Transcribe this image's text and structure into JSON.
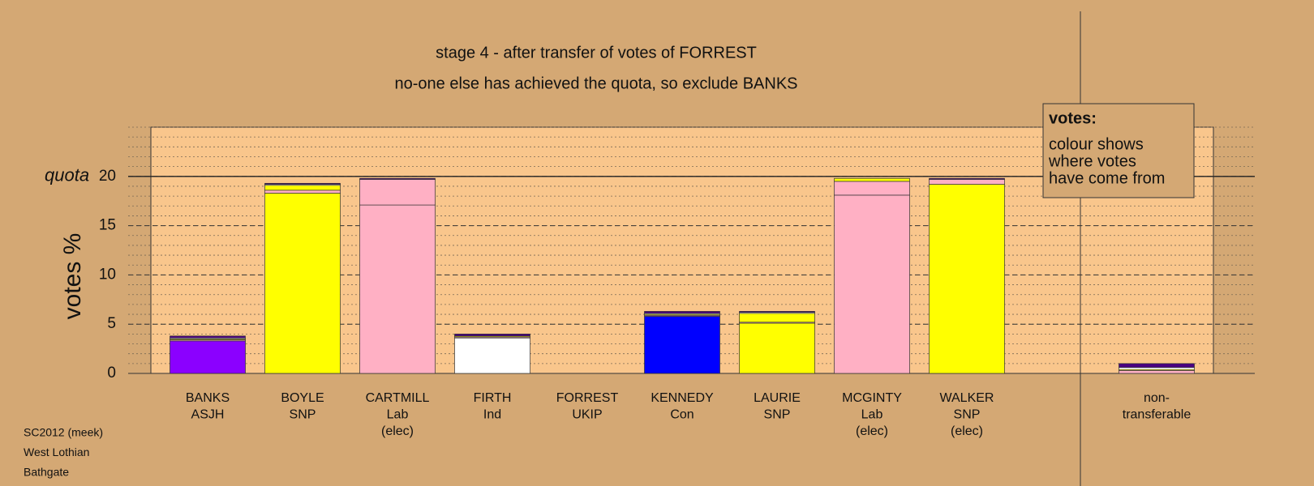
{
  "chart_data": {
    "type": "stacked_bar",
    "title": "stage 4 - after transfer of votes of FORREST",
    "subtitle": "no-one else has achieved the quota, so exclude BANKS",
    "y_label": "votes %",
    "quota": {
      "label": "quota",
      "value": 20
    },
    "categories": [
      [
        "BANKS",
        "ASJH"
      ],
      [
        "BOYLE",
        "SNP"
      ],
      [
        "CARTMILL",
        "Lab",
        "(elec)"
      ],
      [
        "FIRTH",
        "Ind"
      ],
      [
        "FORREST",
        "UKIP"
      ],
      [
        "KENNEDY",
        "Con"
      ],
      [
        "LAURIE",
        "SNP"
      ],
      [
        "MCGINTY",
        "Lab",
        "(elec)"
      ],
      [
        "WALKER",
        "SNP",
        "(elec)"
      ],
      [
        "non-",
        "transferable"
      ]
    ],
    "series": [
      {
        "colors": [
          "#8b00ff",
          "#ffff00",
          "#ffb0c4",
          "#ffffff",
          "#4b0082",
          "#0000ff",
          "#ffff00",
          "#ffb0c4",
          "#ffff00",
          "#ffb0c4"
        ],
        "values": [
          3.3,
          18.3,
          17.1,
          3.6,
          0,
          5.8,
          5.1,
          18.1,
          19.2,
          0
        ]
      },
      {
        "color": "#ffb0c4",
        "values": [
          0.1,
          0.3,
          2.6,
          0.1,
          0,
          0.1,
          0.1,
          1.4,
          0.5,
          0.3
        ]
      },
      {
        "color": "#ffff00",
        "values": [
          0.1,
          0.5,
          0,
          0.1,
          0,
          0.1,
          0.9,
          0.3,
          0,
          0.1
        ]
      },
      {
        "color": "#ffffff",
        "values": [
          0.1,
          0.1,
          0,
          0,
          0,
          0.1,
          0.1,
          0,
          0,
          0.2
        ]
      },
      {
        "color": "#4b0082",
        "values": [
          0.2,
          0.1,
          0.1,
          0.2,
          0,
          0.2,
          0.1,
          0,
          0.1,
          0.4
        ]
      }
    ],
    "ylim": [
      0,
      25
    ],
    "yticks": [
      0,
      5,
      10,
      15,
      20
    ],
    "yminor_step": 1,
    "grid": true,
    "legend": {
      "title": "votes:",
      "lines": [
        "colour shows",
        "where votes",
        "have come from"
      ]
    },
    "footer": [
      "SC2012 (meek)",
      "West Lothian",
      "Bathgate"
    ]
  }
}
